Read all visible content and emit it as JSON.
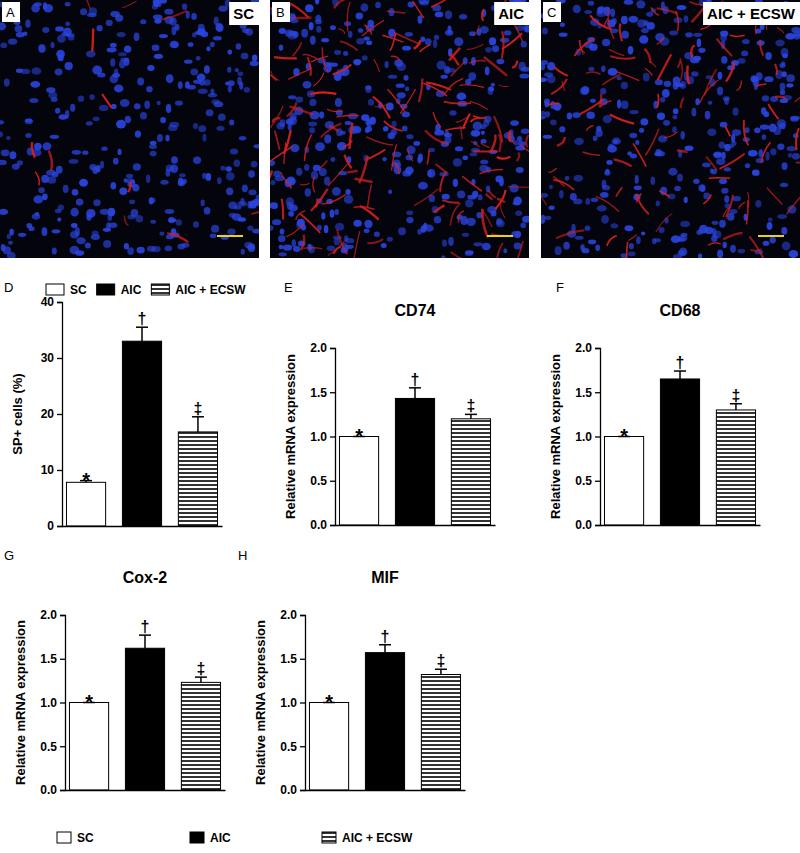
{
  "images": [
    {
      "panel": "A",
      "label": "SC"
    },
    {
      "panel": "B",
      "label": "AIC"
    },
    {
      "panel": "C",
      "label": "AIC + ECSW"
    }
  ],
  "chart_data": [
    {
      "type": "bar",
      "panel": "D",
      "y_label": "SP+ cells (%)",
      "categories": [
        "SC",
        "AIC",
        "AIC + ECSW"
      ],
      "values": [
        7.8,
        33,
        16.8
      ],
      "errors": [
        0.3,
        2.5,
        2.7
      ],
      "annotations": [
        "*",
        "†",
        "‡"
      ],
      "colors": [
        "#ffffff",
        "#000000",
        "#000000"
      ],
      "ylim": [
        0,
        40
      ],
      "yticks": [
        0,
        10,
        20,
        30,
        40
      ],
      "tick_labels": "y",
      "legend": "top"
    },
    {
      "type": "bar",
      "panel": "E",
      "title": "CD74",
      "y_label": "Relative mRNA expression",
      "categories": [
        "SC",
        "AIC",
        "AIC + ECSW"
      ],
      "values": [
        1.0,
        1.43,
        1.2
      ],
      "errors": [
        0,
        0.12,
        0.05
      ],
      "annotations": [
        "*",
        "†",
        "‡"
      ],
      "colors": [
        "#ffffff",
        "#000000",
        "#000000"
      ],
      "ylim": [
        0,
        2
      ],
      "yticks": [
        {
          "value": 0,
          "label": "0.0"
        },
        {
          "value": 0.5,
          "label": "0.5"
        },
        {
          "value": 1,
          "label": "1.0"
        },
        {
          "value": 1.5,
          "label": "1.5"
        },
        {
          "value": 2,
          "label": "2.0"
        }
      ],
      "tick_labels": "y"
    },
    {
      "type": "bar",
      "panel": "F",
      "title": "CD68",
      "y_label": "Relative mRNA expression",
      "categories": [
        "SC",
        "AIC",
        "AIC + ECSW"
      ],
      "values": [
        1.0,
        1.65,
        1.3
      ],
      "errors": [
        0,
        0.09,
        0.07
      ],
      "annotations": [
        "*",
        "†",
        "‡"
      ],
      "colors": [
        "#ffffff",
        "#000000",
        "#000000"
      ],
      "ylim": [
        0,
        2
      ],
      "yticks": [
        {
          "value": 0,
          "label": "0.0"
        },
        {
          "value": 0.5,
          "label": "0.5"
        },
        {
          "value": 1,
          "label": "1.0"
        },
        {
          "value": 1.5,
          "label": "1.5"
        },
        {
          "value": 2,
          "label": "2.0"
        }
      ],
      "tick_labels": "y"
    },
    {
      "type": "bar",
      "panel": "G",
      "title": "Cox-2",
      "y_label": "Relative mRNA expression",
      "categories": [
        "SC",
        "AIC",
        "AIC + ECSW"
      ],
      "values": [
        1.0,
        1.62,
        1.23
      ],
      "errors": [
        0,
        0.15,
        0.06
      ],
      "annotations": [
        "*",
        "†",
        "‡"
      ],
      "colors": [
        "#ffffff",
        "#000000",
        "#000000"
      ],
      "ylim": [
        0,
        2
      ],
      "yticks": [
        {
          "value": 0,
          "label": "0.0"
        },
        {
          "value": 0.5,
          "label": "0.5"
        },
        {
          "value": 1,
          "label": "1.0"
        },
        {
          "value": 1.5,
          "label": "1.5"
        },
        {
          "value": 2,
          "label": "2.0"
        }
      ],
      "tick_labels": "y",
      "legend": "bottom"
    },
    {
      "type": "bar",
      "panel": "H",
      "title": "MIF",
      "y_label": "Relative mRNA expression",
      "categories": [
        "SC",
        "AIC",
        "AIC + ECSW"
      ],
      "values": [
        1.0,
        1.57,
        1.32
      ],
      "errors": [
        0,
        0.09,
        0.06
      ],
      "annotations": [
        "*",
        "†",
        "‡"
      ],
      "colors": [
        "#ffffff",
        "#000000",
        "#000000"
      ],
      "ylim": [
        0,
        2
      ],
      "yticks": [
        {
          "value": 0,
          "label": "0.0"
        },
        {
          "value": 0.5,
          "label": "0.5"
        },
        {
          "value": 1,
          "label": "1.0"
        },
        {
          "value": 1.5,
          "label": "1.5"
        },
        {
          "value": 2,
          "label": "2.0"
        }
      ],
      "tick_labels": "y"
    }
  ]
}
